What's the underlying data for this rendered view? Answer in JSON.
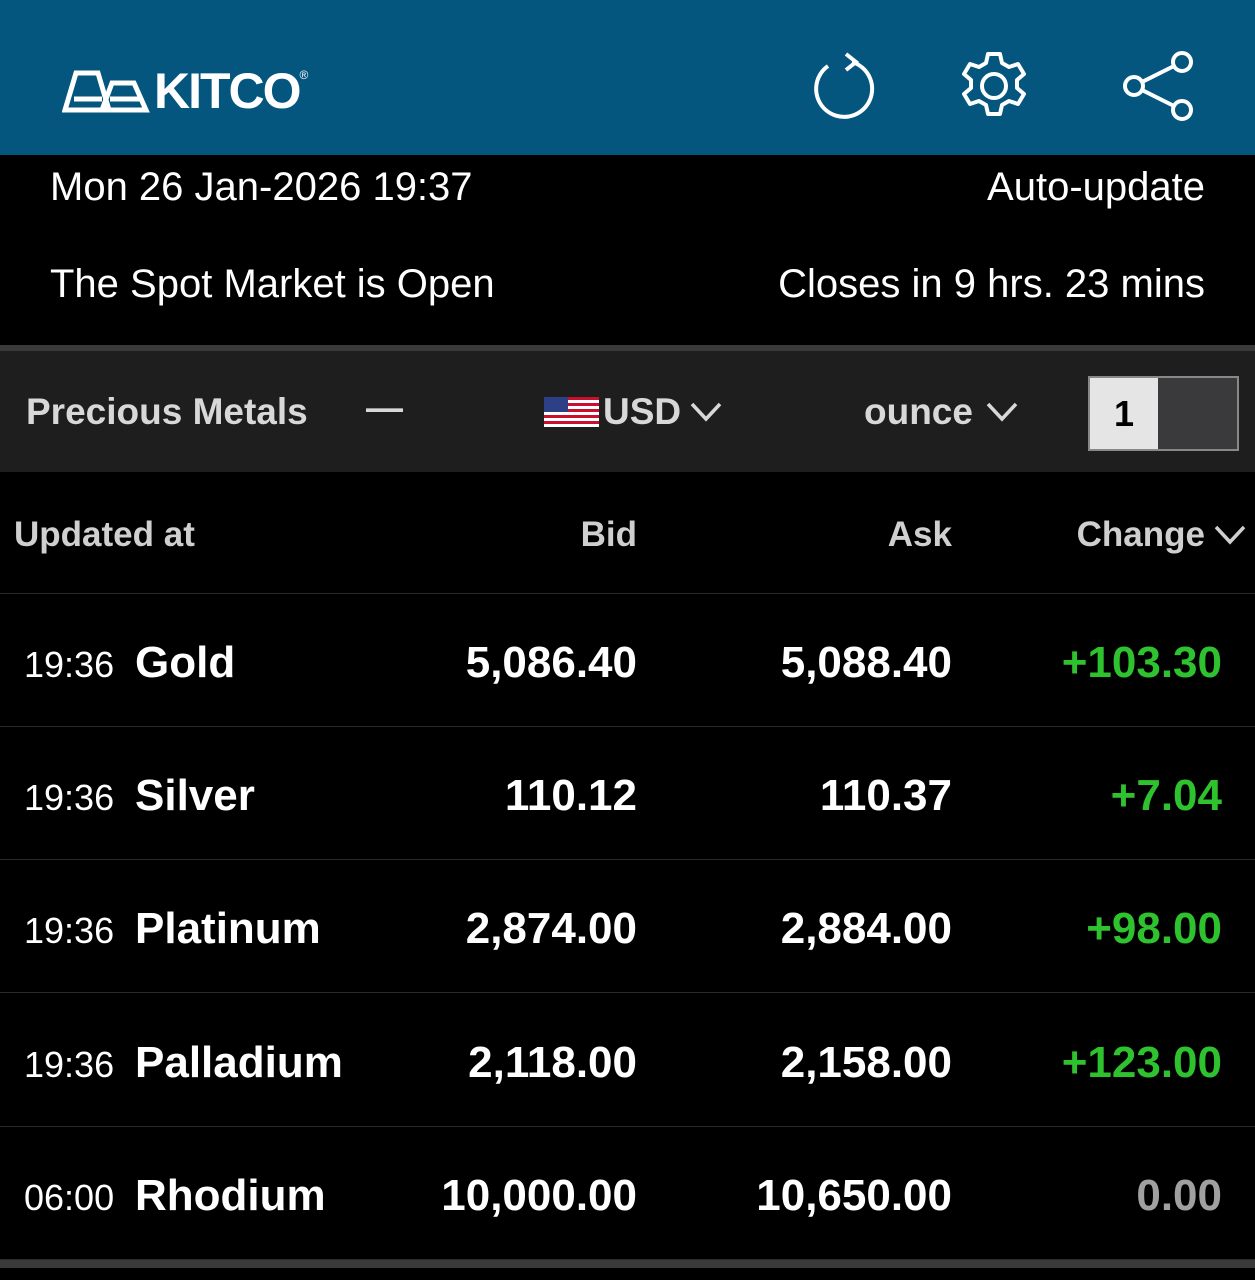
{
  "header": {
    "logo": "KITCO",
    "icons": [
      "refresh-icon",
      "gear-icon",
      "share-icon"
    ]
  },
  "info": {
    "datetime": "Mon 26 Jan-2026 19:37",
    "auto_update": "Auto-update",
    "market_status": "The Spot Market is Open",
    "closes_in": "Closes in 9 hrs. 23 mins"
  },
  "toolbar": {
    "category": "Precious Metals",
    "collapse": "—",
    "currency": "USD",
    "unit": "ounce",
    "quantity": "1"
  },
  "columns": {
    "updated": "Updated at",
    "bid": "Bid",
    "ask": "Ask",
    "change": "Change"
  },
  "colors": {
    "header": "#04567e",
    "positive": "#2fc22f",
    "neutral": "#a0a0a0"
  },
  "rows": [
    {
      "time": "19:36",
      "name": "Gold",
      "bid": "5,086.40",
      "ask": "5,088.40",
      "change": "+103.30",
      "trend": "up"
    },
    {
      "time": "19:36",
      "name": "Silver",
      "bid": "110.12",
      "ask": "110.37",
      "change": "+7.04",
      "trend": "up"
    },
    {
      "time": "19:36",
      "name": "Platinum",
      "bid": "2,874.00",
      "ask": "2,884.00",
      "change": "+98.00",
      "trend": "up"
    },
    {
      "time": "19:36",
      "name": "Palladium",
      "bid": "2,118.00",
      "ask": "2,158.00",
      "change": "+123.00",
      "trend": "up"
    },
    {
      "time": "06:00",
      "name": "Rhodium",
      "bid": "10,000.00",
      "ask": "10,650.00",
      "change": "0.00",
      "trend": "flat"
    }
  ]
}
